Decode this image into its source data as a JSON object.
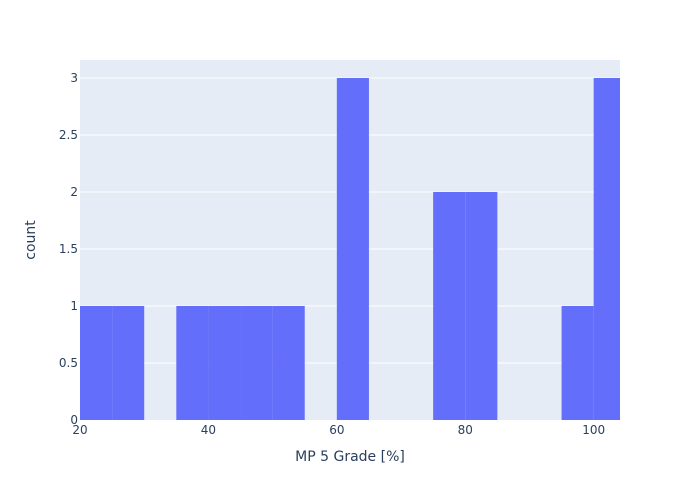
{
  "chart_data": {
    "type": "histogram",
    "xlabel": "MP 5 Grade [%]",
    "ylabel": "count",
    "xlim": [
      20,
      104.1
    ],
    "ylim": [
      0,
      3.158
    ],
    "x_ticks": [
      20,
      40,
      60,
      80,
      100
    ],
    "x_tick_labels": [
      "20",
      "40",
      "60",
      "80",
      "100"
    ],
    "y_ticks": [
      0,
      0.5,
      1,
      1.5,
      2,
      2.5,
      3
    ],
    "y_tick_labels": [
      "0",
      "0.5",
      "1",
      "1.5",
      "2",
      "2.5",
      "3"
    ],
    "bin_size": 5,
    "bins": [
      {
        "start": 20,
        "end": 25,
        "count": 1
      },
      {
        "start": 25,
        "end": 30,
        "count": 1
      },
      {
        "start": 30,
        "end": 35,
        "count": 0
      },
      {
        "start": 35,
        "end": 40,
        "count": 1
      },
      {
        "start": 40,
        "end": 45,
        "count": 1
      },
      {
        "start": 45,
        "end": 50,
        "count": 1
      },
      {
        "start": 50,
        "end": 55,
        "count": 1
      },
      {
        "start": 55,
        "end": 60,
        "count": 0
      },
      {
        "start": 60,
        "end": 65,
        "count": 3
      },
      {
        "start": 65,
        "end": 70,
        "count": 0
      },
      {
        "start": 70,
        "end": 75,
        "count": 0
      },
      {
        "start": 75,
        "end": 80,
        "count": 2
      },
      {
        "start": 80,
        "end": 85,
        "count": 2
      },
      {
        "start": 85,
        "end": 90,
        "count": 0
      },
      {
        "start": 90,
        "end": 95,
        "count": 0
      },
      {
        "start": 95,
        "end": 100,
        "count": 1
      },
      {
        "start": 100,
        "end": 105,
        "count": 3
      }
    ],
    "grid": true,
    "colors": {
      "bar": "#636efa",
      "plot_background": "#e5ecf6",
      "grid": "#ffffff",
      "text": "#2a3f5f"
    }
  }
}
